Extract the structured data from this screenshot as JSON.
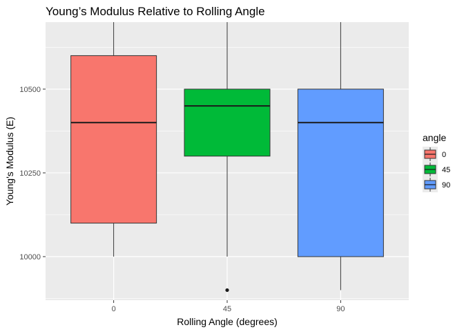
{
  "chart_data": {
    "type": "boxplot",
    "title": "Young’s Modulus Relative to Rolling Angle",
    "xlabel": "Rolling Angle (degrees)",
    "ylabel": "Young's Modulus (E)",
    "ylim": [
      9870,
      10700
    ],
    "yticks": [
      10000,
      10250,
      10500
    ],
    "ytick_labels": [
      "10000",
      "10250",
      "10500"
    ],
    "categories": [
      "0",
      "45",
      "90"
    ],
    "boxes": [
      {
        "category": "0",
        "lower_whisker": 10000,
        "q1": 10100,
        "median": 10400,
        "q3": 10600,
        "upper_whisker": 10700,
        "outliers": [],
        "fill": "#F8766D"
      },
      {
        "category": "45",
        "lower_whisker": 10000,
        "q1": 10300,
        "median": 10450,
        "q3": 10500,
        "upper_whisker": 10700,
        "outliers": [
          9900
        ],
        "fill": "#00BA38"
      },
      {
        "category": "90",
        "lower_whisker": 9900,
        "q1": 10000,
        "median": 10400,
        "q3": 10500,
        "upper_whisker": 10700,
        "outliers": [],
        "fill": "#619CFF"
      }
    ],
    "legend": {
      "title": "angle",
      "entries": [
        {
          "label": "0",
          "color": "#F8766D"
        },
        {
          "label": "45",
          "color": "#00BA38"
        },
        {
          "label": "90",
          "color": "#619CFF"
        }
      ]
    },
    "grid": true
  },
  "colors": {
    "panel_background": "#EBEBEB",
    "grid_major": "#FFFFFF",
    "box_outline": "#333333"
  }
}
